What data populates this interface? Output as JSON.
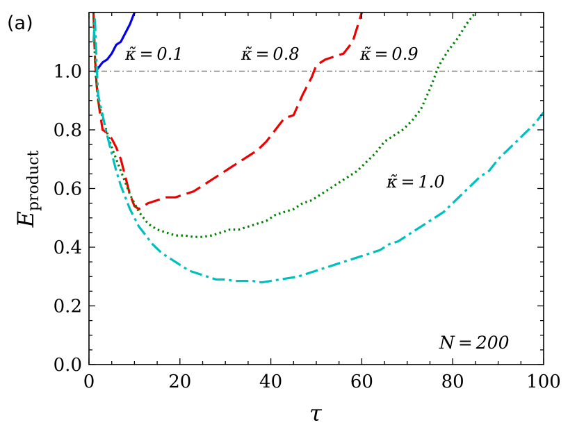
{
  "panel_label": "(a)",
  "annotation_n": "N = 200",
  "chart_data": {
    "type": "line",
    "xlabel": "τ",
    "ylabel_main": "E",
    "ylabel_sub": "product",
    "xlim": [
      0,
      100
    ],
    "ylim": [
      0.0,
      1.2
    ],
    "x_ticks": [
      0,
      20,
      40,
      60,
      80,
      100
    ],
    "x_tick_labels": [
      "0",
      "20",
      "40",
      "60",
      "80",
      "100"
    ],
    "y_ticks": [
      0.0,
      0.2,
      0.4,
      0.6,
      0.8,
      1.0
    ],
    "y_tick_labels": [
      "0.0",
      "0.2",
      "0.4",
      "0.6",
      "0.8",
      "1.0"
    ],
    "grid": false,
    "reference_line": {
      "y": 1.0,
      "color": "#808080",
      "style": "dash-dot"
    },
    "series": [
      {
        "label": "κ̃ = 0.1",
        "color": "#0000ee",
        "style": "solid",
        "points": [
          [
            1.5,
            1.0
          ],
          [
            2,
            1.01
          ],
          [
            3,
            1.03
          ],
          [
            4,
            1.04
          ],
          [
            5,
            1.06
          ],
          [
            6,
            1.09
          ],
          [
            7,
            1.1
          ],
          [
            8,
            1.13
          ],
          [
            9,
            1.16
          ],
          [
            10,
            1.2
          ]
        ]
      },
      {
        "label": "κ̃ = 0.8",
        "color": "#ee0000",
        "style": "dashed",
        "points": [
          [
            1,
            1.2
          ],
          [
            1.3,
            1.05
          ],
          [
            1.7,
            0.95
          ],
          [
            2.2,
            0.88
          ],
          [
            3,
            0.8
          ],
          [
            4,
            0.79
          ],
          [
            5,
            0.77
          ],
          [
            6,
            0.74
          ],
          [
            7,
            0.7
          ],
          [
            8,
            0.64
          ],
          [
            9,
            0.58
          ],
          [
            10,
            0.54
          ],
          [
            11,
            0.53
          ],
          [
            12,
            0.54
          ],
          [
            13,
            0.55
          ],
          [
            15,
            0.56
          ],
          [
            17,
            0.57
          ],
          [
            19,
            0.57
          ],
          [
            21,
            0.58
          ],
          [
            23,
            0.59
          ],
          [
            25,
            0.61
          ],
          [
            27,
            0.63
          ],
          [
            29,
            0.65
          ],
          [
            31,
            0.67
          ],
          [
            33,
            0.69
          ],
          [
            35,
            0.71
          ],
          [
            37,
            0.73
          ],
          [
            39,
            0.76
          ],
          [
            41,
            0.8
          ],
          [
            43,
            0.84
          ],
          [
            45,
            0.85
          ],
          [
            47,
            0.92
          ],
          [
            49,
            0.98
          ],
          [
            50,
            1.02
          ],
          [
            52,
            1.04
          ],
          [
            54,
            1.05
          ],
          [
            56,
            1.06
          ],
          [
            58,
            1.1
          ],
          [
            59,
            1.15
          ],
          [
            60,
            1.2
          ]
        ]
      },
      {
        "label": "κ̃ = 0.9",
        "color": "#008000",
        "style": "dotted",
        "points": [
          [
            1,
            1.2
          ],
          [
            1.4,
            1.0
          ],
          [
            2,
            0.9
          ],
          [
            3,
            0.84
          ],
          [
            4,
            0.79
          ],
          [
            5,
            0.74
          ],
          [
            6,
            0.7
          ],
          [
            7,
            0.66
          ],
          [
            8,
            0.62
          ],
          [
            9,
            0.58
          ],
          [
            10,
            0.55
          ],
          [
            11,
            0.52
          ],
          [
            12,
            0.5
          ],
          [
            13,
            0.48
          ],
          [
            15,
            0.46
          ],
          [
            17,
            0.45
          ],
          [
            19,
            0.44
          ],
          [
            21,
            0.44
          ],
          [
            23,
            0.435
          ],
          [
            25,
            0.435
          ],
          [
            27,
            0.44
          ],
          [
            29,
            0.45
          ],
          [
            31,
            0.46
          ],
          [
            33,
            0.46
          ],
          [
            35,
            0.47
          ],
          [
            37,
            0.48
          ],
          [
            39,
            0.49
          ],
          [
            41,
            0.51
          ],
          [
            43,
            0.52
          ],
          [
            45,
            0.53
          ],
          [
            47,
            0.55
          ],
          [
            49,
            0.56
          ],
          [
            51,
            0.58
          ],
          [
            53,
            0.6
          ],
          [
            55,
            0.62
          ],
          [
            57,
            0.64
          ],
          [
            59,
            0.66
          ],
          [
            61,
            0.69
          ],
          [
            63,
            0.72
          ],
          [
            65,
            0.76
          ],
          [
            67,
            0.78
          ],
          [
            69,
            0.8
          ],
          [
            71,
            0.83
          ],
          [
            73,
            0.87
          ],
          [
            75,
            0.94
          ],
          [
            77,
            1.02
          ],
          [
            79,
            1.07
          ],
          [
            81,
            1.11
          ],
          [
            83,
            1.16
          ],
          [
            85,
            1.2
          ]
        ]
      },
      {
        "label": "κ̃ = 1.0",
        "color": "#00bfbf",
        "style": "dash-dot",
        "points": [
          [
            1,
            1.1
          ],
          [
            1.3,
            1.18
          ],
          [
            1.6,
            1.05
          ],
          [
            2,
            0.92
          ],
          [
            3,
            0.85
          ],
          [
            4,
            0.78
          ],
          [
            5,
            0.72
          ],
          [
            6,
            0.66
          ],
          [
            7,
            0.61
          ],
          [
            8,
            0.57
          ],
          [
            9,
            0.53
          ],
          [
            10,
            0.5
          ],
          [
            11,
            0.47
          ],
          [
            12,
            0.45
          ],
          [
            13,
            0.43
          ],
          [
            14,
            0.41
          ],
          [
            16,
            0.38
          ],
          [
            18,
            0.36
          ],
          [
            20,
            0.34
          ],
          [
            22,
            0.32
          ],
          [
            24,
            0.31
          ],
          [
            26,
            0.3
          ],
          [
            28,
            0.29
          ],
          [
            30,
            0.29
          ],
          [
            32,
            0.285
          ],
          [
            34,
            0.285
          ],
          [
            36,
            0.285
          ],
          [
            38,
            0.28
          ],
          [
            40,
            0.285
          ],
          [
            42,
            0.29
          ],
          [
            44,
            0.295
          ],
          [
            46,
            0.3
          ],
          [
            48,
            0.31
          ],
          [
            50,
            0.32
          ],
          [
            52,
            0.33
          ],
          [
            54,
            0.34
          ],
          [
            56,
            0.35
          ],
          [
            58,
            0.36
          ],
          [
            60,
            0.37
          ],
          [
            62,
            0.38
          ],
          [
            64,
            0.39
          ],
          [
            66,
            0.41
          ],
          [
            68,
            0.42
          ],
          [
            70,
            0.44
          ],
          [
            72,
            0.46
          ],
          [
            74,
            0.48
          ],
          [
            76,
            0.5
          ],
          [
            78,
            0.52
          ],
          [
            80,
            0.55
          ],
          [
            82,
            0.58
          ],
          [
            84,
            0.61
          ],
          [
            86,
            0.64
          ],
          [
            88,
            0.66
          ],
          [
            90,
            0.7
          ],
          [
            92,
            0.73
          ],
          [
            94,
            0.76
          ],
          [
            96,
            0.79
          ],
          [
            98,
            0.82
          ],
          [
            100,
            0.86
          ]
        ]
      }
    ]
  }
}
